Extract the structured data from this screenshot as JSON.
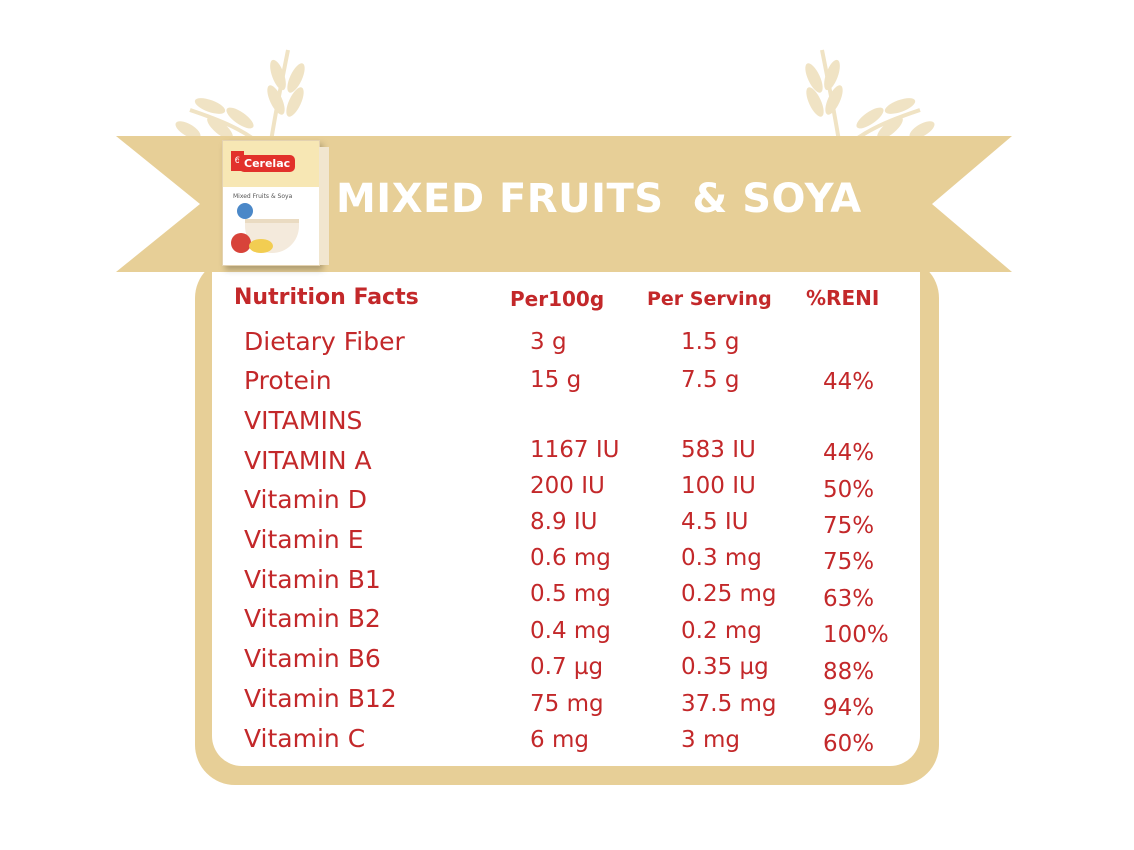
{
  "title": "MIXED FRUITS  & SOYA",
  "product": {
    "logo": "Cerelac",
    "badge": "6",
    "variant": "Mixed Fruits & Soya"
  },
  "colors": {
    "tan": "#e7cf97",
    "red": "#c3282a",
    "white": "#ffffff"
  },
  "headers": {
    "name": "Nutrition Facts",
    "per100": "Per100g",
    "serving": "Per Serving",
    "reni": "%RENI"
  },
  "rows": [
    {
      "name": "Dietary Fiber",
      "per100": "3 g",
      "serving": "1.5 g",
      "reni": ""
    },
    {
      "name": "Protein",
      "per100": "15 g",
      "serving": "7.5 g",
      "reni": "44%"
    },
    {
      "name": "VITAMINS",
      "per100": "",
      "serving": "",
      "reni": ""
    },
    {
      "name": "VITAMIN A",
      "per100": "1167 IU",
      "serving": "583 IU",
      "reni": "44%"
    },
    {
      "name": "Vitamin D",
      "per100": "200 IU",
      "serving": "100 IU",
      "reni": "50%"
    },
    {
      "name": "Vitamin E",
      "per100": "8.9 IU",
      "serving": "4.5 IU",
      "reni": "75%"
    },
    {
      "name": "Vitamin B1",
      "per100": "0.6 mg",
      "serving": "0.3 mg",
      "reni": "75%"
    },
    {
      "name": "Vitamin B2",
      "per100": "0.5 mg",
      "serving": "0.25 mg",
      "reni": "63%"
    },
    {
      "name": "Vitamin B6",
      "per100": "0.4 mg",
      "serving": "0.2 mg",
      "reni": "100%"
    },
    {
      "name": "Vitamin B12",
      "per100": "0.7 µg",
      "serving": "0.35 µg",
      "reni": "88%"
    },
    {
      "name": "Vitamin C",
      "per100": "75 mg",
      "serving": "37.5 mg",
      "reni": "94%"
    },
    {
      "name": "",
      "per100": "6 mg",
      "serving": "3 mg",
      "reni": "60%"
    }
  ]
}
